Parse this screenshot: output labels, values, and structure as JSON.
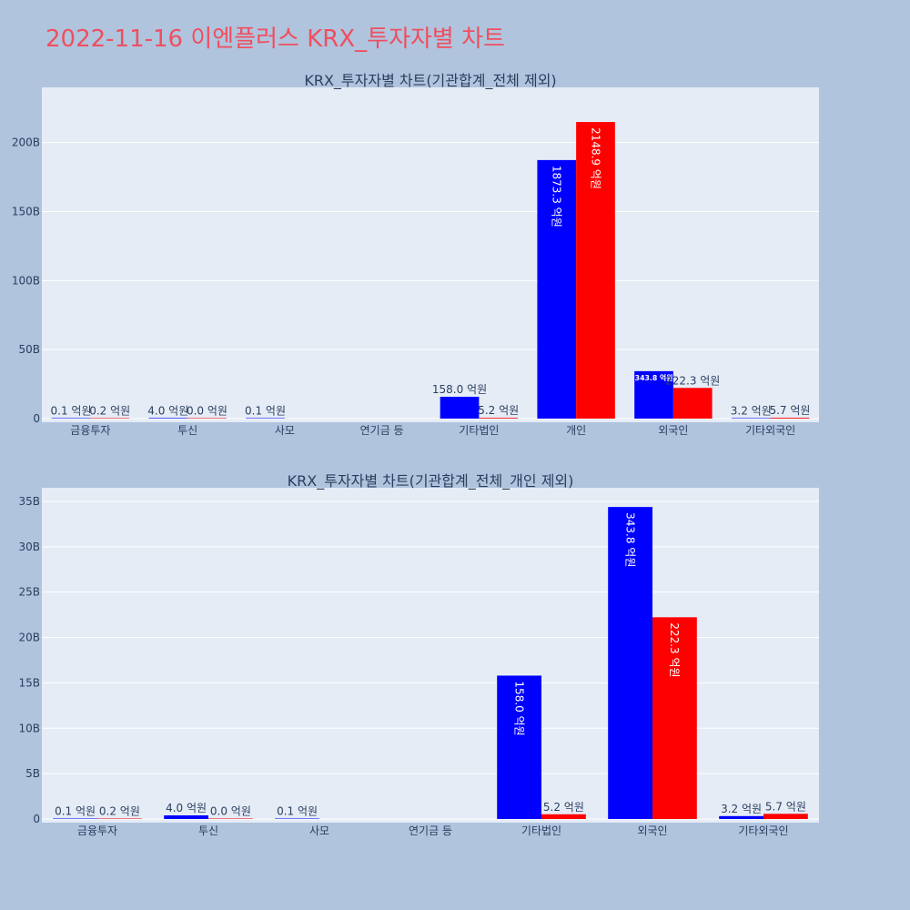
{
  "page_title": "2022-11-16 이엔플러스 KRX_투자자별 차트",
  "colors": {
    "series_a": "#0000ff",
    "series_b": "#ff0000",
    "title": "#ef4f5f",
    "plot_bg": "#e5ecf6",
    "page_bg": "#b0c4de"
  },
  "chart_data": [
    {
      "type": "bar",
      "title": "KRX_투자자별 차트(기관합계_전체 제외)",
      "categories": [
        "금융투자",
        "투신",
        "사모",
        "연기금 등",
        "기타법인",
        "개인",
        "외국인",
        "기타외국인"
      ],
      "ylim": [
        0,
        240
      ],
      "y_ticks": [
        0,
        50,
        100,
        150,
        200
      ],
      "y_tick_labels": [
        "0",
        "50B",
        "100B",
        "150B",
        "200B"
      ],
      "grid": true,
      "series": [
        {
          "values": [
            0.01,
            0.4,
            0.01,
            null,
            15.8,
            187.33,
            34.38,
            0.32
          ],
          "labels": [
            "0.1 억원",
            "4.0 억원",
            "0.1 억원",
            "",
            "158.0 억원",
            "1873.3 억원",
            "343.8 억원",
            "3.2 억원"
          ]
        },
        {
          "values": [
            0.02,
            0.0,
            null,
            null,
            0.52,
            214.89,
            22.23,
            0.57
          ],
          "labels": [
            "0.2 억원",
            "0.0 억원",
            "",
            "",
            "5.2 억원",
            "2148.9 억원",
            "222.3 억원",
            "5.7 억원"
          ]
        }
      ]
    },
    {
      "type": "bar",
      "title": "KRX_투자자별 차트(기관합계_전체_개인 제외)",
      "categories": [
        "금융투자",
        "투신",
        "사모",
        "연기금 등",
        "기타법인",
        "외국인",
        "기타외국인"
      ],
      "ylim": [
        0,
        36.5
      ],
      "y_ticks": [
        0,
        5,
        10,
        15,
        20,
        25,
        30,
        35
      ],
      "y_tick_labels": [
        "0",
        "5B",
        "10B",
        "15B",
        "20B",
        "25B",
        "30B",
        "35B"
      ],
      "grid": true,
      "series": [
        {
          "values": [
            0.01,
            0.4,
            0.01,
            null,
            15.8,
            34.38,
            0.32
          ],
          "labels": [
            "0.1 억원",
            "4.0 억원",
            "0.1 억원",
            "",
            "158.0 억원",
            "343.8 억원",
            "3.2 억원"
          ]
        },
        {
          "values": [
            0.02,
            0.0,
            null,
            null,
            0.52,
            22.23,
            0.57
          ],
          "labels": [
            "0.2 억원",
            "0.0 억원",
            "",
            "",
            "5.2 억원",
            "222.3 억원",
            "5.7 억원"
          ]
        }
      ]
    }
  ]
}
